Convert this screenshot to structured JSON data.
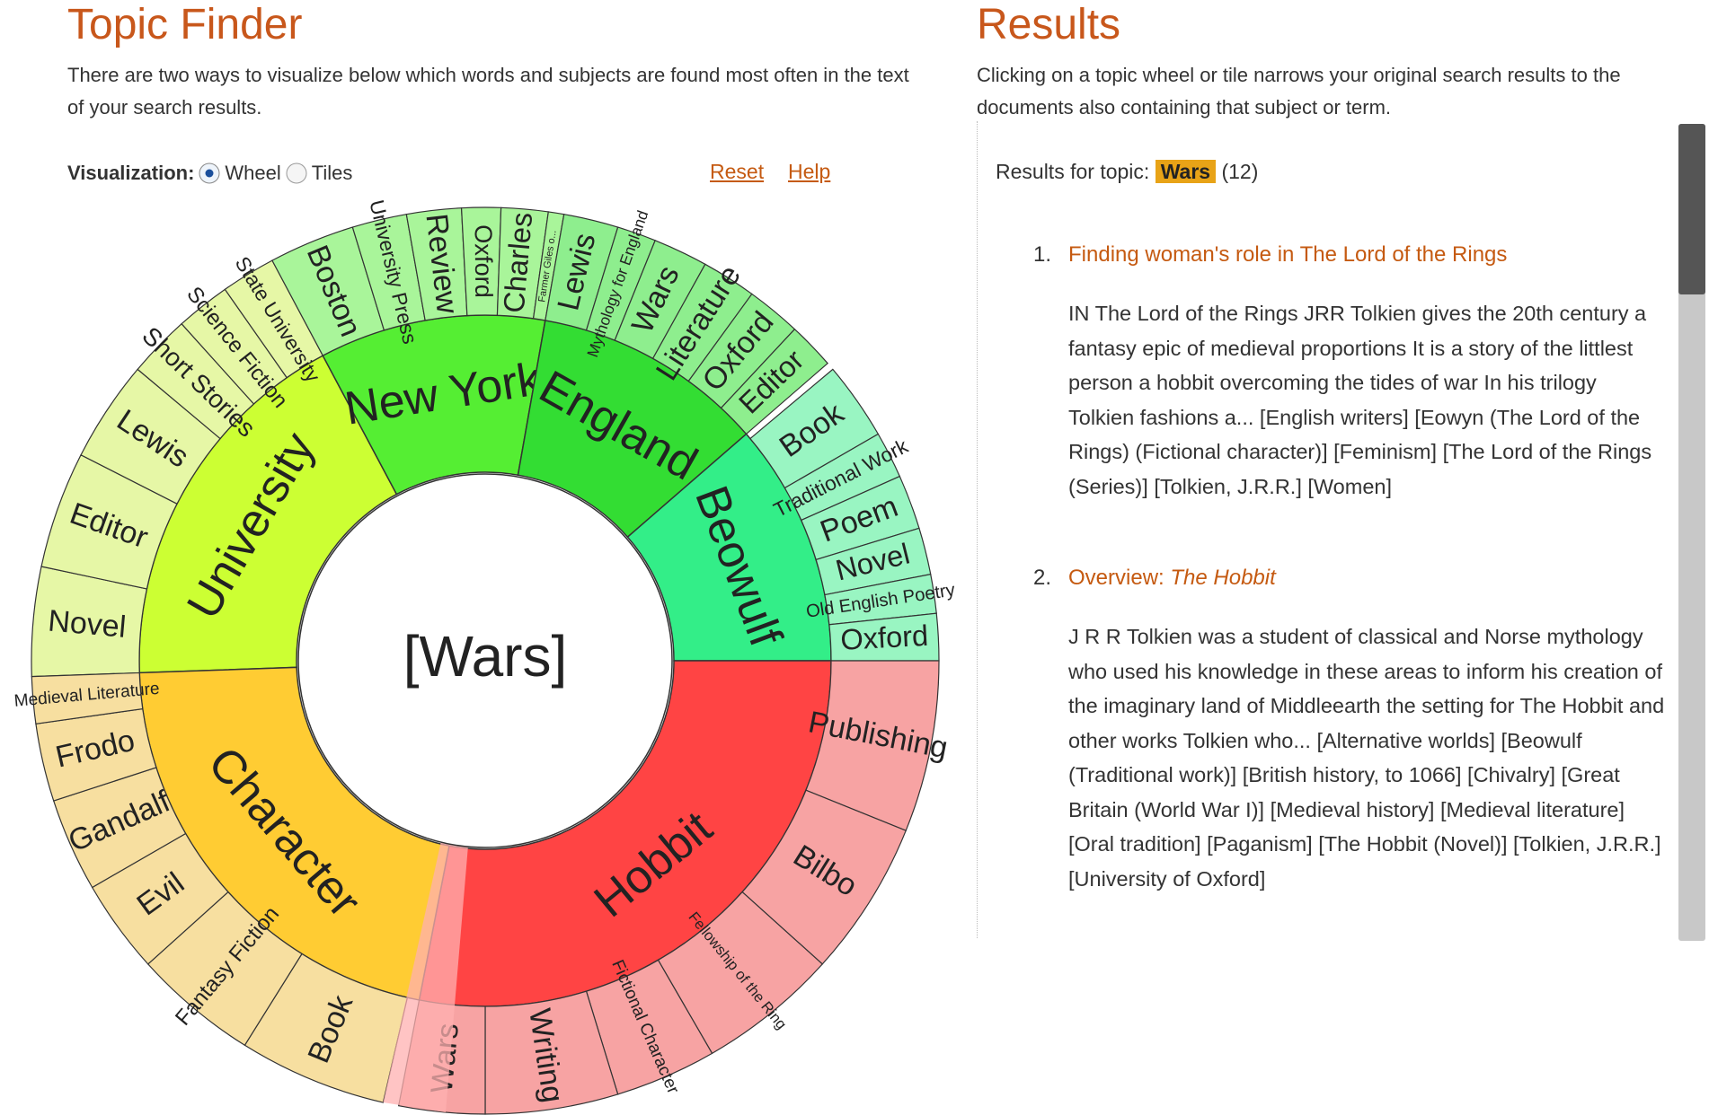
{
  "left": {
    "title": "Topic Finder",
    "description": "There are two ways to visualize below which words and subjects are found most often in the text of your search results.",
    "visualization_label": "Visualization:",
    "options": [
      "Wheel",
      "Tiles"
    ],
    "reset": "Reset",
    "help": "Help"
  },
  "wheel": {
    "center": "[Wars]",
    "topics": [
      {
        "label": "University",
        "color": "#ccff33",
        "tile_color": "#e6f7a6",
        "children": [
          "Novel",
          "Editor",
          "Lewis",
          "Short Stories",
          "Science Fiction",
          "State University"
        ]
      },
      {
        "label": "New York",
        "color": "#55ee33",
        "tile_color": "#a9f59a",
        "children": [
          "Boston",
          "University Press",
          "Review",
          "Oxford",
          "Charles",
          "Farmer Giles o..."
        ]
      },
      {
        "label": "England",
        "color": "#33dd33",
        "tile_color": "#8eee8e",
        "children": [
          "Lewis",
          "Mythology for England",
          "Wars",
          "Literature",
          "Oxford",
          "Editor"
        ]
      },
      {
        "label": "Beowulf",
        "color": "#33ee88",
        "tile_color": "#99f5c2",
        "children": [
          "Book",
          "Traditional Work",
          "Poem",
          "Novel",
          "Old English Poetry",
          "Oxford"
        ]
      },
      {
        "label": "Hobbit",
        "color": "#ff4444",
        "tile_color": "#f7a3a3",
        "children": [
          "Publishing",
          "Bilbo",
          "Fellowship of the Ring",
          "Fictional Character",
          "Writing",
          "Wars"
        ]
      },
      {
        "label": "Character",
        "color": "#ffcc33",
        "tile_color": "#f7dfa0",
        "children": [
          "Book",
          "Fantasy Fiction",
          "Evil",
          "Gandalf",
          "Frodo",
          "Medieval Literature"
        ]
      }
    ]
  },
  "right": {
    "title": "Results",
    "description": "Clicking on a topic wheel or tile narrows your original search results to the documents also containing that subject or term.",
    "results_prefix": "Results for topic:",
    "topic": "Wars",
    "count": "(12)",
    "items": [
      {
        "number": "1.",
        "title": "Finding woman's role in The Lord of the Rings",
        "body": "IN The Lord of the Rings JRR Tolkien gives the 20th century a fantasy epic of medieval proportions It is a story of the littlest person a hobbit overcoming the tides of war In his trilogy Tolkien fashions a... [English writers] [Eowyn (The Lord of the Rings) (Fictional character)] [Feminism] [The Lord of the Rings (Series)] [Tolkien, J.R.R.] [Women]"
      },
      {
        "number": "2.",
        "title": "Overview:",
        "title_italic": "The Hobbit",
        "body": "J R R Tolkien was a student of classical and Norse mythology who used his knowledge in these areas to inform his creation of the imaginary land of Middleearth the setting for The Hobbit and other works Tolkien who... [Alternative worlds] [Beowulf (Traditional work)] [British history, to 1066] [Chivalry] [Great Britain (World War I)] [Medieval history] [Medieval literature] [Oral tradition] [Paganism] [The Hobbit (Novel)] [Tolkien, J.R.R.] [University of Oxford]"
      }
    ]
  }
}
